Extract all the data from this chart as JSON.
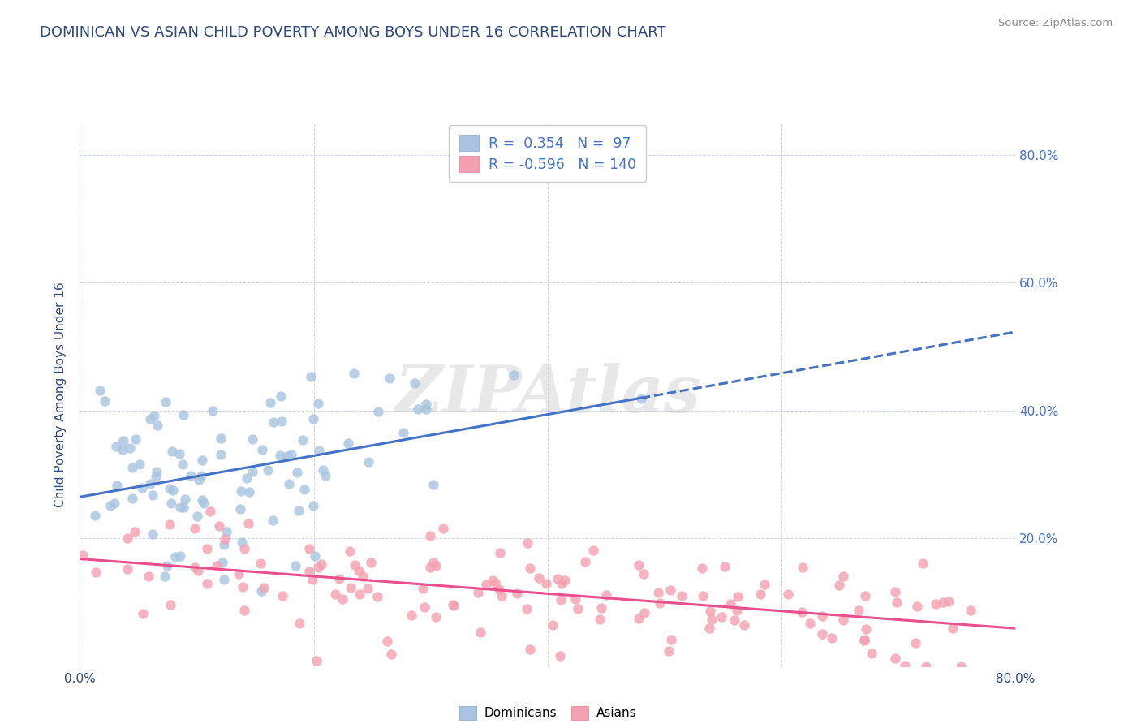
{
  "title": "DOMINICAN VS ASIAN CHILD POVERTY AMONG BOYS UNDER 16 CORRELATION CHART",
  "source": "Source: ZipAtlas.com",
  "ylabel": "Child Poverty Among Boys Under 16",
  "xlim": [
    0.0,
    0.8
  ],
  "ylim": [
    0.0,
    0.85
  ],
  "xticks": [
    0.0,
    0.2,
    0.4,
    0.6,
    0.8
  ],
  "xtick_labels": [
    "0.0%",
    "",
    "",
    "",
    "80.0%"
  ],
  "yticks": [
    0.2,
    0.4,
    0.6,
    0.8
  ],
  "ytick_labels": [
    "20.0%",
    "40.0%",
    "60.0%",
    "80.0%"
  ],
  "dominican_color": "#a8c4e0",
  "asian_color": "#f4a0b0",
  "dominican_line_color": "#4472c4",
  "asian_line_color": "#e84f8c",
  "r_dominican": 0.354,
  "n_dominican": 97,
  "r_asian": -0.596,
  "n_asian": 140,
  "watermark": "ZIPAtlas",
  "background_color": "#ffffff",
  "grid_color": "#c8d4e8",
  "legend_label_dominicans": "Dominicans",
  "legend_label_asians": "Asians",
  "title_color": "#2e4a7a",
  "axis_color": "#2e4a7a",
  "right_ytick_color": "#4472c4",
  "seed": 42
}
